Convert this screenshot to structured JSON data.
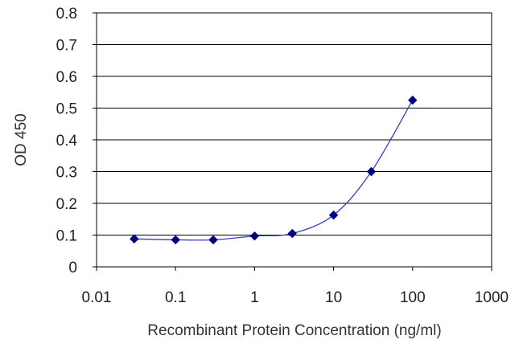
{
  "chart_data": {
    "type": "scatter",
    "title": "",
    "xlabel": "Recombinant Protein Concentration (ng/ml)",
    "ylabel": "OD 450",
    "x_scale": "log",
    "xlim": [
      0.01,
      1000
    ],
    "ylim": [
      0,
      0.8
    ],
    "x_ticks": [
      "0.01",
      "0.1",
      "1",
      "10",
      "100",
      "1000"
    ],
    "y_ticks": [
      "0",
      "0.1",
      "0.2",
      "0.3",
      "0.4",
      "0.5",
      "0.6",
      "0.7",
      "0.8"
    ],
    "grid": "horizontal",
    "legend": "none",
    "series": [
      {
        "x": [
          0.03,
          0.1,
          0.3,
          1,
          3,
          10,
          30,
          100
        ],
        "y": [
          0.088,
          0.085,
          0.085,
          0.097,
          0.105,
          0.163,
          0.3,
          0.525
        ],
        "color": "#00007f"
      }
    ]
  }
}
